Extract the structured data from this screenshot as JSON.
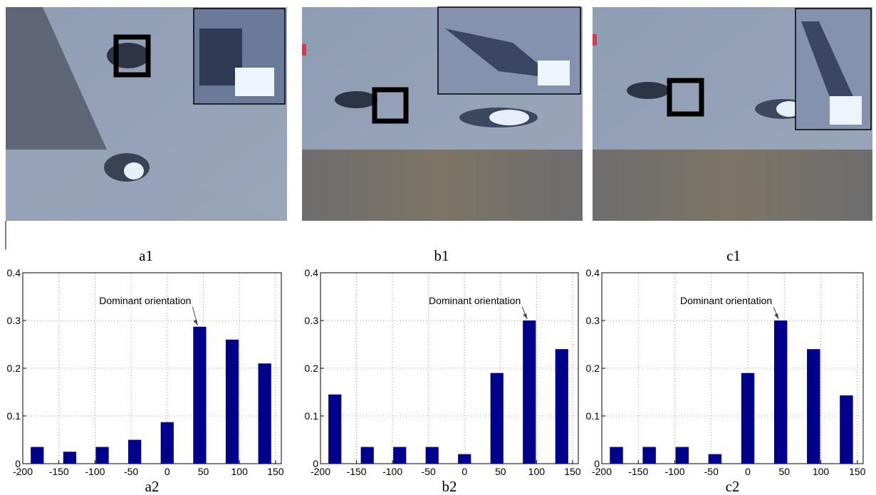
{
  "images": [
    {
      "caption": "a1"
    },
    {
      "caption": "b1"
    },
    {
      "caption": "c1"
    }
  ],
  "chart_data": [
    {
      "type": "bar",
      "xlabel": "a2",
      "annotation": "Dominant orientation",
      "x": [
        -180,
        -135,
        -90,
        -45,
        0,
        45,
        90,
        135
      ],
      "values": [
        0.035,
        0.025,
        0.035,
        0.05,
        0.087,
        0.287,
        0.26,
        0.21
      ],
      "color": "#00008b",
      "xlim": [
        -200,
        158
      ],
      "ylim": [
        0,
        0.4
      ],
      "xticks": [
        -200,
        -150,
        -100,
        -50,
        0,
        50,
        100,
        150
      ],
      "yticks": [
        0,
        0.1,
        0.2,
        0.3,
        0.4
      ],
      "grid": true
    },
    {
      "type": "bar",
      "xlabel": "b2",
      "annotation": "Dominant orientation",
      "x": [
        -180,
        -135,
        -90,
        -45,
        0,
        45,
        90,
        135
      ],
      "values": [
        0.145,
        0.035,
        0.035,
        0.035,
        0.02,
        0.19,
        0.3,
        0.24
      ],
      "color": "#00008b",
      "xlim": [
        -200,
        158
      ],
      "ylim": [
        0,
        0.4
      ],
      "xticks": [
        -200,
        -150,
        -100,
        -50,
        0,
        50,
        100,
        150
      ],
      "yticks": [
        0,
        0.1,
        0.2,
        0.3,
        0.4
      ],
      "grid": true
    },
    {
      "type": "bar",
      "xlabel": "c2",
      "annotation": "Dominant orientation",
      "x": [
        -180,
        -135,
        -90,
        -45,
        0,
        45,
        90,
        135
      ],
      "values": [
        0.035,
        0.035,
        0.035,
        0.02,
        0.19,
        0.3,
        0.24,
        0.143
      ],
      "color": "#00008b",
      "xlim": [
        -200,
        158
      ],
      "ylim": [
        0,
        0.4
      ],
      "xticks": [
        -200,
        -150,
        -100,
        -50,
        0,
        50,
        100,
        150
      ],
      "yticks": [
        0,
        0.1,
        0.2,
        0.3,
        0.4
      ],
      "grid": true
    }
  ]
}
